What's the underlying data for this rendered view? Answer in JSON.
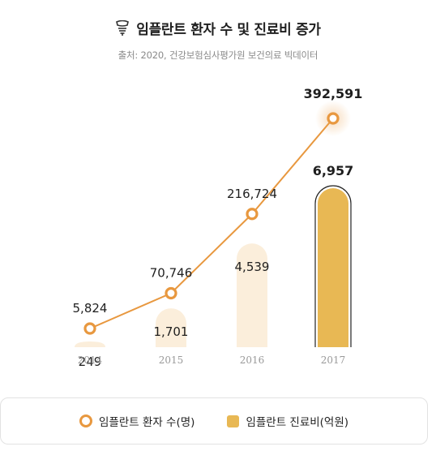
{
  "header": {
    "title": "임플란트 환자 수 및 진료비 증가",
    "subtitle": "출처: 2020, 건강보험심사평가원 보건의료 빅데이터",
    "icon": "dental-implant-icon"
  },
  "colors": {
    "line": "#e8983f",
    "bar_light": "#fbeedb",
    "bar_highlight": "#e8b854",
    "axis_text": "#9a9a9a"
  },
  "legend": {
    "line_label": "임플란트 환자 수(명)",
    "bar_label": "임플란트 진료비(억원)"
  },
  "chart_data": {
    "type": "bar+line",
    "categories": [
      "2014",
      "2015",
      "2016",
      "2017"
    ],
    "series": [
      {
        "name": "임플란트 환자 수(명)",
        "type": "line",
        "values": [
          5824,
          70746,
          216724,
          392591
        ],
        "labels": [
          "5,824",
          "70,746",
          "216,724",
          "392,591"
        ]
      },
      {
        "name": "임플란트 진료비(억원)",
        "type": "bar",
        "values": [
          249,
          1701,
          4539,
          6957
        ],
        "labels": [
          "249",
          "1,701",
          "4,539",
          "6,957"
        ]
      }
    ],
    "highlight_index": 3,
    "grid": false
  }
}
